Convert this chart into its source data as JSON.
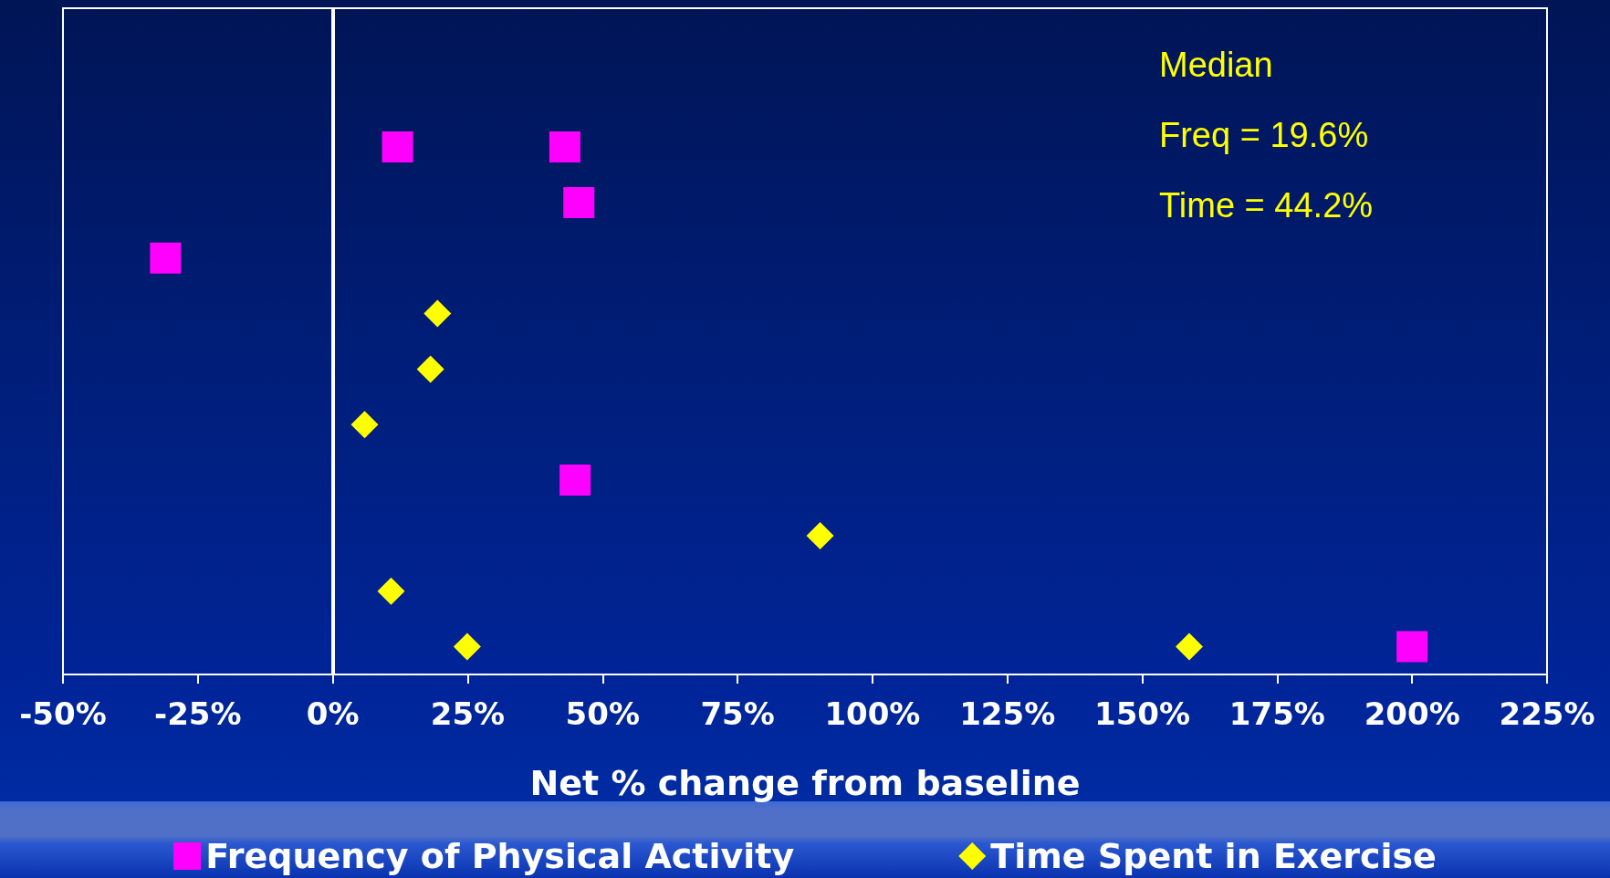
{
  "chart_data": {
    "type": "scatter",
    "orientation": "horizontal",
    "xlabel": "Net % change from baseline",
    "categories": [
      null,
      null,
      null,
      null,
      null,
      null,
      null,
      null,
      null,
      null,
      null,
      null
    ],
    "xlim": [
      -50,
      225
    ],
    "xticks": [
      {
        "value": -50,
        "label": "-50%"
      },
      {
        "value": -25,
        "label": "-25%"
      },
      {
        "value": 0,
        "label": "0%"
      },
      {
        "value": 25,
        "label": "25%"
      },
      {
        "value": 50,
        "label": "50%"
      },
      {
        "value": 75,
        "label": "75%"
      },
      {
        "value": 100,
        "label": "100%"
      },
      {
        "value": 125,
        "label": "125%"
      },
      {
        "value": 150,
        "label": "150%"
      },
      {
        "value": 175,
        "label": "175%"
      },
      {
        "value": 200,
        "label": "200%"
      },
      {
        "value": 225,
        "label": "225%"
      }
    ],
    "grid": false,
    "legend": "bottom",
    "ref_lines": [
      {
        "axis": "x",
        "value": 0,
        "color": "#ffffff"
      }
    ],
    "annotations": [
      "Median",
      "Freq = 19.6%",
      "Time = 44.2%"
    ],
    "series": [
      {
        "name": "Frequency of Physical Activity",
        "color": "#ff00ff",
        "marker": "square",
        "values": [
          null,
          null,
          12,
          45.6,
          -31,
          null,
          null,
          null,
          44.9,
          null,
          null,
          200
        ]
      },
      {
        "color": "#ff00ff",
        "marker": "square",
        "values": [
          null,
          null,
          43,
          null,
          null,
          null,
          null,
          null,
          null,
          null,
          null,
          null
        ]
      },
      {
        "name": "Time Spent in Exercise",
        "color": "#ffff00",
        "marker": "diamond",
        "values": [
          null,
          null,
          null,
          null,
          null,
          19.4,
          18.1,
          5.9,
          null,
          90.3,
          10.8,
          24.9
        ]
      },
      {
        "color": "#ffff00",
        "marker": "diamond",
        "values": [
          null,
          null,
          null,
          null,
          null,
          null,
          null,
          null,
          null,
          null,
          null,
          158.7
        ]
      }
    ]
  }
}
